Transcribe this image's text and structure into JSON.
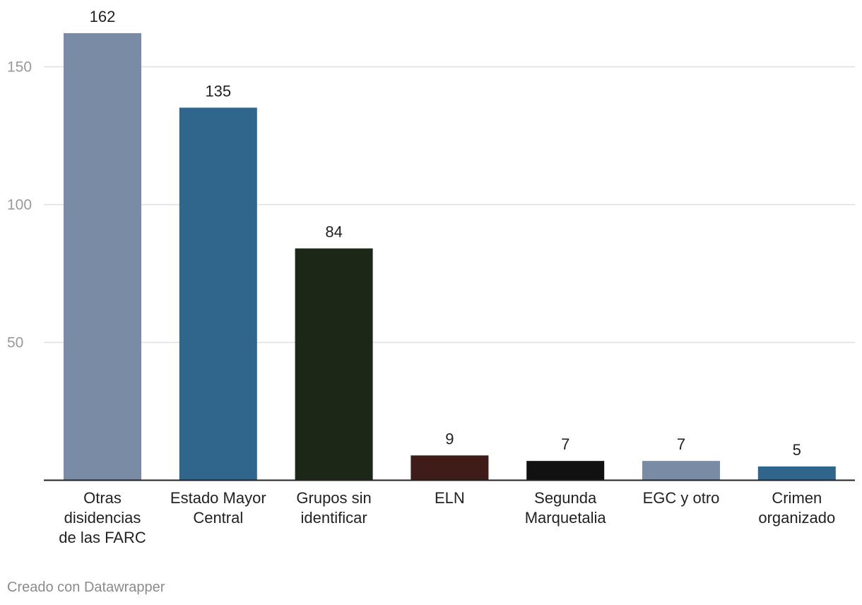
{
  "chart_data": {
    "type": "bar",
    "categories": [
      "Otras disidencias de las FARC",
      "Estado Mayor Central",
      "Grupos sin identificar",
      "ELN",
      "Segunda Marquetalia",
      "EGC y otro",
      "Crimen organizado"
    ],
    "category_lines": [
      [
        "Otras",
        "disidencias",
        "de las FARC"
      ],
      [
        "Estado Mayor",
        "Central"
      ],
      [
        "Grupos sin",
        "identificar"
      ],
      [
        "ELN"
      ],
      [
        "Segunda",
        "Marquetalia"
      ],
      [
        "EGC y otro"
      ],
      [
        "Crimen",
        "organizado"
      ]
    ],
    "values": [
      162,
      135,
      84,
      9,
      7,
      7,
      5
    ],
    "value_labels": [
      "162",
      "135",
      "84",
      "9",
      "7",
      "7",
      "5"
    ],
    "colors": [
      "#798ba5",
      "#30668b",
      "#1d2718",
      "#401c19",
      "#111111",
      "#798ba5",
      "#30668b"
    ],
    "yticks": [
      50,
      100,
      150
    ],
    "ytick_labels": [
      "50",
      "100",
      "150"
    ],
    "ylim": [
      0,
      170
    ],
    "title": "",
    "xlabel": "",
    "ylabel": "",
    "grid": true
  },
  "footer": {
    "credit": "Creado con Datawrapper"
  }
}
